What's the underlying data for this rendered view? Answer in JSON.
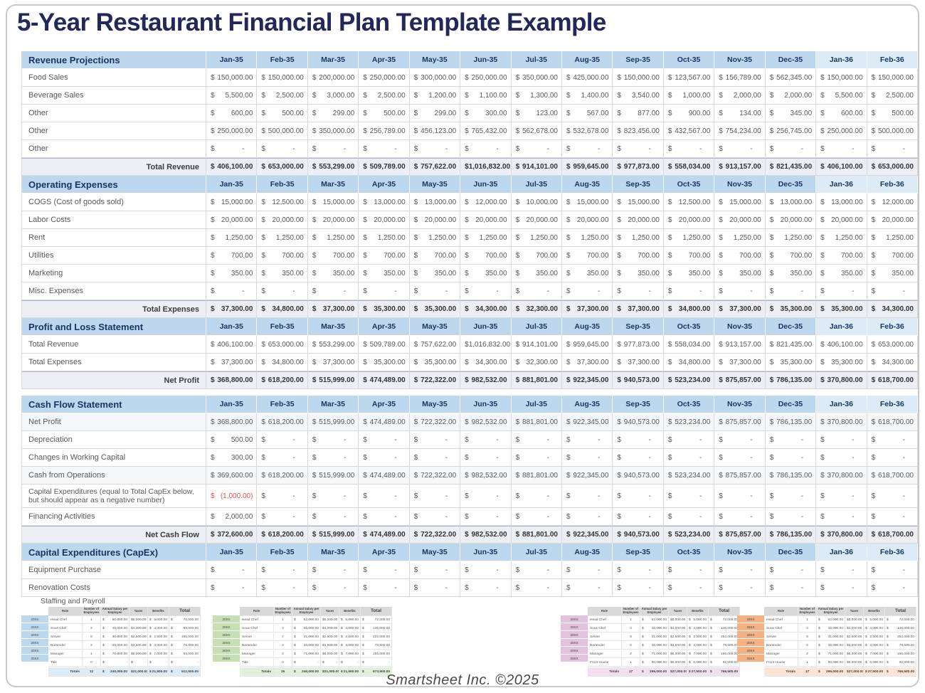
{
  "page": {
    "title": "5-Year Restaurant Financial Plan Template Example",
    "footer": "Smartsheet Inc. ©2025"
  },
  "currency": "$",
  "colors": {
    "title": "#232858",
    "header_bg": "#bdd7ee",
    "header_bg_light": "#ddebf7",
    "header_text": "#17365d",
    "body_text": "#595959",
    "total_bg": "#edeff5",
    "negative": "#e0524e",
    "border": "#d9d9d9"
  },
  "months": [
    "Jan-35",
    "Feb-35",
    "Mar-35",
    "Apr-35",
    "May-35",
    "Jun-35",
    "Jul-35",
    "Aug-35",
    "Sep-35",
    "Oct-35",
    "Nov-35",
    "Dec-35",
    "Jan-36",
    "Feb-36"
  ],
  "light_header_from": 12,
  "sections": [
    {
      "title": "Revenue Projections",
      "rows": [
        {
          "label": "Food Sales",
          "values": [
            "150,000.00",
            "150,000.00",
            "200,000.00",
            "250,000.00",
            "300,000.00",
            "250,000.00",
            "350,000.00",
            "425,000.00",
            "150,000.00",
            "123,567.00",
            "156,789.00",
            "562,345.00",
            "150,000.00",
            "150,000.00"
          ]
        },
        {
          "label": "Beverage Sales",
          "values": [
            "5,500.00",
            "2,500.00",
            "3,000.00",
            "2,500.00",
            "1,200.00",
            "1,100.00",
            "1,300.00",
            "1,400.00",
            "3,540.00",
            "1,000.00",
            "2,000.00",
            "2,000.00",
            "5,500.00",
            "2,500.00"
          ]
        },
        {
          "label": "Other",
          "values": [
            "600.00",
            "500.00",
            "299.00",
            "500.00",
            "299.00",
            "300.00",
            "123.00",
            "567.00",
            "877.00",
            "900.00",
            "134.00",
            "345.00",
            "600.00",
            "500.00"
          ]
        },
        {
          "label": "Other",
          "values": [
            "250,000.00",
            "500,000.00",
            "350,000.00",
            "256,789.00",
            "456,123.00",
            "765,432.00",
            "562,678.00",
            "532,678.00",
            "823,456.00",
            "432,567.00",
            "754,234.00",
            "256,745.00",
            "250,000.00",
            "500,000.00"
          ]
        },
        {
          "label": "Other",
          "values": [
            "-",
            "-",
            "-",
            "-",
            "-",
            "-",
            "-",
            "-",
            "-",
            "-",
            "-",
            "-",
            "-",
            "-"
          ]
        }
      ],
      "total": {
        "label": "Total Revenue",
        "values": [
          "406,100.00",
          "653,000.00",
          "553,299.00",
          "509,789.00",
          "757,622.00",
          "1,016,832.00",
          "914,101.00",
          "959,645.00",
          "977,873.00",
          "558,034.00",
          "913,157.00",
          "821,435.00",
          "406,100.00",
          "653,000.00"
        ]
      }
    },
    {
      "title": "Operating Expenses",
      "rows": [
        {
          "label": "COGS (Cost of goods sold)",
          "values": [
            "15,000.00",
            "12,500.00",
            "15,000.00",
            "13,000.00",
            "13,000.00",
            "12,000.00",
            "10,000.00",
            "15,000.00",
            "15,000.00",
            "12,500.00",
            "15,000.00",
            "13,000.00",
            "13,000.00",
            "12,000.00"
          ]
        },
        {
          "label": "Labor Costs",
          "values": [
            "20,000.00",
            "20,000.00",
            "20,000.00",
            "20,000.00",
            "20,000.00",
            "20,000.00",
            "20,000.00",
            "20,000.00",
            "20,000.00",
            "20,000.00",
            "20,000.00",
            "20,000.00",
            "20,000.00",
            "20,000.00"
          ]
        },
        {
          "label": "Rent",
          "values": [
            "1,250.00",
            "1,250.00",
            "1,250.00",
            "1,250.00",
            "1,250.00",
            "1,250.00",
            "1,250.00",
            "1,250.00",
            "1,250.00",
            "1,250.00",
            "1,250.00",
            "1,250.00",
            "1,250.00",
            "1,250.00"
          ]
        },
        {
          "label": "Utilities",
          "values": [
            "700.00",
            "700.00",
            "700.00",
            "700.00",
            "700.00",
            "700.00",
            "700.00",
            "700.00",
            "700.00",
            "700.00",
            "700.00",
            "700.00",
            "700.00",
            "700.00"
          ]
        },
        {
          "label": "Marketing",
          "values": [
            "350.00",
            "350.00",
            "350.00",
            "350.00",
            "350.00",
            "350.00",
            "350.00",
            "350.00",
            "350.00",
            "350.00",
            "350.00",
            "350.00",
            "350.00",
            "350.00"
          ]
        },
        {
          "label": "Misc. Expenses",
          "values": [
            "-",
            "-",
            "-",
            "-",
            "-",
            "-",
            "-",
            "-",
            "-",
            "-",
            "-",
            "-",
            "-",
            "-"
          ]
        }
      ],
      "total": {
        "label": "Total Expenses",
        "values": [
          "37,300.00",
          "34,800.00",
          "37,300.00",
          "35,300.00",
          "35,300.00",
          "34,300.00",
          "32,300.00",
          "37,300.00",
          "37,300.00",
          "34,800.00",
          "37,300.00",
          "35,300.00",
          "35,300.00",
          "34,300.00"
        ]
      }
    },
    {
      "title": "Profit and Loss Statement",
      "rows": [
        {
          "label": "Total Revenue",
          "values": [
            "406,100.00",
            "653,000.00",
            "553,299.00",
            "509,789.00",
            "757,622.00",
            "1,016,832.00",
            "914,101.00",
            "959,645.00",
            "977,873.00",
            "558,034.00",
            "913,157.00",
            "821,435.00",
            "406,100.00",
            "653,000.00"
          ]
        },
        {
          "label": "Total Expenses",
          "values": [
            "37,300.00",
            "34,800.00",
            "37,300.00",
            "35,300.00",
            "35,300.00",
            "34,300.00",
            "32,300.00",
            "37,300.00",
            "37,300.00",
            "34,800.00",
            "37,300.00",
            "35,300.00",
            "35,300.00",
            "34,300.00"
          ]
        }
      ],
      "total": {
        "label": "Net Profit",
        "values": [
          "368,800.00",
          "618,200.00",
          "515,999.00",
          "474,489.00",
          "722,322.00",
          "982,532.00",
          "881,801.00",
          "922,345.00",
          "940,573.00",
          "523,234.00",
          "875,857.00",
          "786,135.00",
          "370,800.00",
          "618,700.00"
        ]
      }
    },
    {
      "title": "Cash Flow Statement",
      "rows": [
        {
          "label": "Net Profit",
          "shaded": true,
          "values": [
            "368,800.00",
            "618,200.00",
            "515,999.00",
            "474,489.00",
            "722,322.00",
            "982,532.00",
            "881,801.00",
            "922,345.00",
            "940,573.00",
            "523,234.00",
            "875,857.00",
            "786,135.00",
            "370,800.00",
            "618,700.00"
          ]
        },
        {
          "label": "Depreciation",
          "values": [
            "500.00",
            "-",
            "-",
            "-",
            "-",
            "-",
            "-",
            "-",
            "-",
            "-",
            "-",
            "-",
            "-",
            "-"
          ]
        },
        {
          "label": "Changes in Working Capital",
          "values": [
            "300.00",
            "-",
            "-",
            "-",
            "-",
            "-",
            "-",
            "-",
            "-",
            "-",
            "-",
            "-",
            "-",
            "-"
          ]
        },
        {
          "label": "Cash from Operations",
          "shaded": true,
          "values": [
            "369,600.00",
            "618,200.00",
            "515,999.00",
            "474,489.00",
            "722,322.00",
            "982,532.00",
            "881,801.00",
            "922,345.00",
            "940,573.00",
            "523,234.00",
            "875,857.00",
            "786,135.00",
            "370,800.00",
            "618,700.00"
          ]
        },
        {
          "label": "Capital Expenditures (equal to Total CapEx below, but should appear as a negative number)",
          "tall": true,
          "red_indices": [
            0
          ],
          "values": [
            "(1,000.00)",
            "-",
            "-",
            "-",
            "-",
            "-",
            "-",
            "-",
            "-",
            "-",
            "-",
            "-",
            "-",
            "-"
          ]
        },
        {
          "label": "Financing Activities",
          "values": [
            "2,000.00",
            "-",
            "-",
            "-",
            "-",
            "-",
            "-",
            "-",
            "-",
            "-",
            "-",
            "-",
            "-",
            "-"
          ]
        }
      ],
      "total": {
        "label": "Net Cash Flow",
        "values": [
          "372,600.00",
          "618,200.00",
          "515,999.00",
          "474,489.00",
          "722,322.00",
          "982,532.00",
          "881,801.00",
          "922,345.00",
          "940,573.00",
          "523,234.00",
          "875,857.00",
          "786,135.00",
          "370,800.00",
          "618,700.00"
        ]
      }
    },
    {
      "title": "Capital Expenditures (CapEx)",
      "rows": [
        {
          "label": "Equipment Purchase",
          "values": [
            "-",
            "-",
            "-",
            "-",
            "-",
            "-",
            "-",
            "-",
            "-",
            "-",
            "-",
            "-",
            "-",
            "-"
          ]
        },
        {
          "label": "Renovation Costs",
          "values": [
            "-",
            "-",
            "-",
            "-",
            "-",
            "-",
            "-",
            "-",
            "-",
            "-",
            "-",
            "-",
            "-",
            "-"
          ]
        }
      ]
    }
  ],
  "staffing": {
    "heading": "Staffing and Payroll",
    "year_label": "20XX",
    "totals_label": "Totals",
    "columns": [
      "Role",
      "Number of Employees",
      "Annual Salary per Employee",
      "Taxes",
      "Benefits",
      "Total"
    ],
    "tables": [
      {
        "accent": "#bdd7ee",
        "tint": "#ddebf7",
        "rows": [
          [
            "Head Chef",
            "1",
            "60,000.00",
            "5,000.00",
            "5,000.00",
            "70,000.00"
          ],
          [
            "Sous Chef",
            "2",
            "45,000.00",
            "4,000.00",
            "4,000.00",
            "98,000.00"
          ],
          [
            "Server",
            "6",
            "30,000.00",
            "2,500.00",
            "2,500.00",
            "185,000.00"
          ],
          [
            "Bartender",
            "2",
            "35,000.00",
            "3,500.00",
            "3,000.00",
            "76,500.00"
          ],
          [
            "Manager",
            "1",
            "70,000.00",
            "6,000.00",
            "7,000.00",
            "83,000.00"
          ],
          [
            "Title",
            "0",
            "-",
            "-",
            "-",
            "-"
          ]
        ],
        "totals": [
          "12",
          "240,000.00",
          "21,000.00",
          "21,500.00",
          "512,500.00"
        ]
      },
      {
        "accent": "#c6e0b4",
        "tint": "#e2efda",
        "rows": [
          [
            "Head Chef",
            "1",
            "62,000.00",
            "5,000.00",
            "5,000.00",
            "72,000.00"
          ],
          [
            "Sous Chef",
            "3",
            "46,000.00",
            "4,000.00",
            "4,000.00",
            "146,000.00"
          ],
          [
            "Server",
            "7",
            "31,000.00",
            "2,500.00",
            "2,500.00",
            "222,000.00"
          ],
          [
            "Bartender",
            "2",
            "36,000.00",
            "3,500.00",
            "3,000.00",
            "78,500.00"
          ],
          [
            "Manager",
            "2",
            "71,000.00",
            "6,000.00",
            "7,000.00",
            "155,000.00"
          ],
          [
            "Title",
            "0",
            "-",
            "-",
            "-",
            "-"
          ]
        ],
        "totals": [
          "15",
          "246,000.00",
          "21,000.00",
          "21,500.00",
          "673,500.00"
        ]
      },
      {
        "accent": "#e3c2df",
        "tint": "#f2dff0",
        "rows": [
          [
            "Head Chef",
            "1",
            "62,000.00",
            "5,000.00",
            "5,000.00",
            "72,000.00"
          ],
          [
            "Sous Chef",
            "3",
            "46,000.00",
            "4,000.00",
            "4,000.00",
            "146,000.00"
          ],
          [
            "Server",
            "8",
            "31,000.00",
            "2,500.00",
            "2,500.00",
            "253,000.00"
          ],
          [
            "Bartender",
            "2",
            "36,000.00",
            "3,500.00",
            "3,000.00",
            "78,500.00"
          ],
          [
            "Manager",
            "2",
            "71,000.00",
            "6,000.00",
            "7,000.00",
            "155,000.00"
          ],
          [
            "Front House",
            "1",
            "50,000.00",
            "6,000.00",
            "6,000.00",
            "62,000.00"
          ]
        ],
        "totals": [
          "17",
          "296,000.00",
          "27,000.00",
          "27,500.00",
          "766,500.00"
        ]
      },
      {
        "accent": "#f4b183",
        "tint": "#fbe5d6",
        "rows": [
          [
            "Head Chef",
            "1",
            "62,000.00",
            "5,000.00",
            "5,000.00",
            "72,000.00"
          ],
          [
            "Sous Chef",
            "3",
            "46,000.00",
            "4,000.00",
            "4,000.00",
            "146,000.00"
          ],
          [
            "Server",
            "8",
            "31,000.00",
            "2,500.00",
            "2,500.00",
            "253,000.00"
          ],
          [
            "Bartender",
            "2",
            "36,000.00",
            "3,500.00",
            "3,000.00",
            "78,500.00"
          ],
          [
            "Manager",
            "2",
            "71,000.00",
            "6,000.00",
            "7,000.00",
            "155,000.00"
          ],
          [
            "Front House",
            "1",
            "50,000.00",
            "6,000.00",
            "6,000.00",
            "62,000.00"
          ]
        ],
        "totals": [
          "17",
          "296,000.00",
          "27,000.00",
          "27,500.00",
          "766,500.00"
        ]
      }
    ]
  }
}
